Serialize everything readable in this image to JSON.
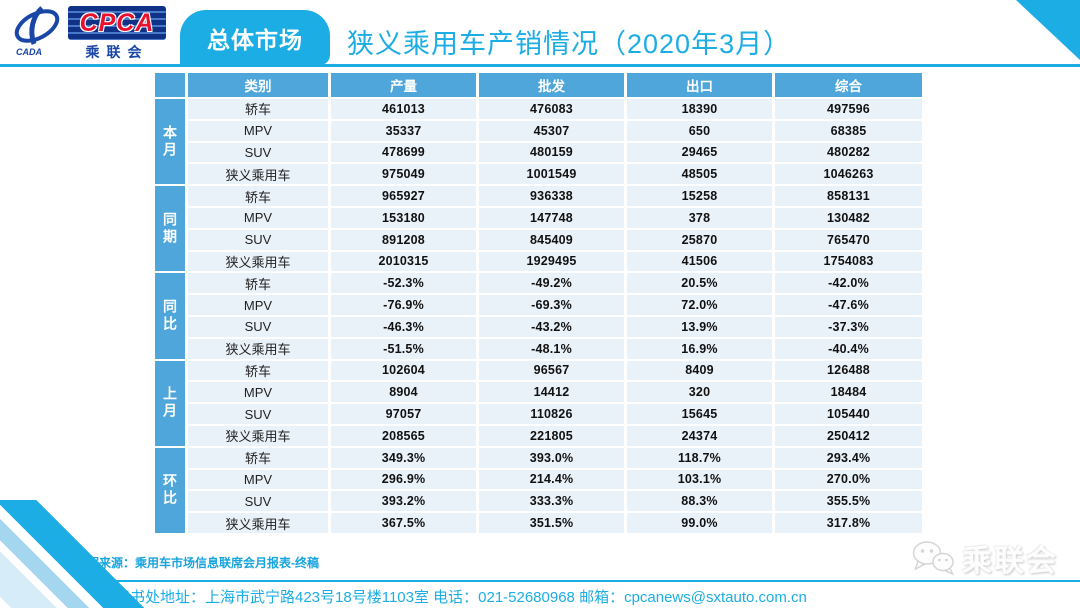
{
  "header": {
    "logo": {
      "cpca": "CPCA",
      "cn": "乘联会",
      "cada": "CADA"
    },
    "tab_label": "总体市场",
    "title": "狭义乘用车产销情况（2020年3月）"
  },
  "chart_data": {
    "type": "table",
    "columns": [
      "类别",
      "产量",
      "批发",
      "出口",
      "综合"
    ],
    "row_groups": [
      {
        "label": "本月",
        "rows": [
          {
            "category": "轿车",
            "values": [
              "461013",
              "476083",
              "18390",
              "497596"
            ]
          },
          {
            "category": "MPV",
            "values": [
              "35337",
              "45307",
              "650",
              "68385"
            ]
          },
          {
            "category": "SUV",
            "values": [
              "478699",
              "480159",
              "29465",
              "480282"
            ]
          },
          {
            "category": "狭义乘用车",
            "values": [
              "975049",
              "1001549",
              "48505",
              "1046263"
            ]
          }
        ]
      },
      {
        "label": "同期",
        "rows": [
          {
            "category": "轿车",
            "values": [
              "965927",
              "936338",
              "15258",
              "858131"
            ]
          },
          {
            "category": "MPV",
            "values": [
              "153180",
              "147748",
              "378",
              "130482"
            ]
          },
          {
            "category": "SUV",
            "values": [
              "891208",
              "845409",
              "25870",
              "765470"
            ]
          },
          {
            "category": "狭义乘用车",
            "values": [
              "2010315",
              "1929495",
              "41506",
              "1754083"
            ]
          }
        ]
      },
      {
        "label": "同比",
        "rows": [
          {
            "category": "轿车",
            "values": [
              "-52.3%",
              "-49.2%",
              "20.5%",
              "-42.0%"
            ]
          },
          {
            "category": "MPV",
            "values": [
              "-76.9%",
              "-69.3%",
              "72.0%",
              "-47.6%"
            ]
          },
          {
            "category": "SUV",
            "values": [
              "-46.3%",
              "-43.2%",
              "13.9%",
              "-37.3%"
            ]
          },
          {
            "category": "狭义乘用车",
            "values": [
              "-51.5%",
              "-48.1%",
              "16.9%",
              "-40.4%"
            ]
          }
        ]
      },
      {
        "label": "上月",
        "rows": [
          {
            "category": "轿车",
            "values": [
              "102604",
              "96567",
              "8409",
              "126488"
            ]
          },
          {
            "category": "MPV",
            "values": [
              "8904",
              "14412",
              "320",
              "18484"
            ]
          },
          {
            "category": "SUV",
            "values": [
              "97057",
              "110826",
              "15645",
              "105440"
            ]
          },
          {
            "category": "狭义乘用车",
            "values": [
              "208565",
              "221805",
              "24374",
              "250412"
            ]
          }
        ]
      },
      {
        "label": "环比",
        "rows": [
          {
            "category": "轿车",
            "values": [
              "349.3%",
              "393.0%",
              "118.7%",
              "293.4%"
            ]
          },
          {
            "category": "MPV",
            "values": [
              "296.9%",
              "214.4%",
              "103.1%",
              "270.0%"
            ]
          },
          {
            "category": "SUV",
            "values": [
              "393.2%",
              "333.3%",
              "88.3%",
              "355.5%"
            ]
          },
          {
            "category": "狭义乘用车",
            "values": [
              "367.5%",
              "351.5%",
              "99.0%",
              "317.8%"
            ]
          }
        ]
      }
    ]
  },
  "footer": {
    "source": "数据来源：乘用车市场信息联席会月报表-终稿",
    "watermark": "乘联会",
    "address": "乘联会秘书处地址：上海市武宁路423号18号楼1103室 电话：021-52680968  邮箱：cpcanews@sxtauto.com.cn"
  },
  "colors": {
    "accent_cyan": "#1CADE4",
    "table_header_blue": "#4FA6DA",
    "row_background": "#EAF2F9",
    "logo_navy": "#0F3286",
    "logo_red": "#E8112D"
  }
}
